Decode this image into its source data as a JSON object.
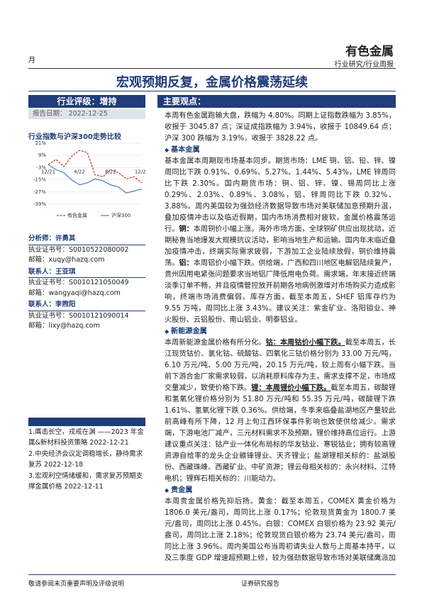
{
  "header": {
    "left": "月",
    "sector": "有色金属",
    "category": "行业研究/行业周报"
  },
  "title": "宏观预期反复，金属价格震荡延续",
  "sidebar": {
    "rating": {
      "label": "行业评级：",
      "value": "增持"
    },
    "date": {
      "label": "报告日期：",
      "value": "2022-12-25"
    },
    "chart_title": "行业指数与沪深300走势比较",
    "chart": {
      "type": "line",
      "categories": [
        "12/21",
        null,
        null,
        null,
        "4/22",
        null,
        null,
        null,
        "8/22",
        null,
        null,
        null,
        "12/22"
      ],
      "series": [
        {
          "name": "有色金属",
          "color": "#c0392b",
          "values": [
            0,
            5,
            -2,
            8,
            14,
            12,
            -10,
            -12,
            -5,
            -8,
            -14,
            -12,
            -18
          ]
        },
        {
          "name": "沪深300",
          "color": "#4a7fc1",
          "values": [
            0,
            -5,
            -8,
            -15,
            -20,
            -18,
            -14,
            -16,
            -20,
            -22,
            -28,
            -26,
            -24
          ]
        }
      ],
      "ylim": [
        -39,
        21
      ],
      "yticks": [
        {
          "value": 21,
          "label": "21%"
        },
        {
          "value": 9,
          "label": "9%"
        },
        {
          "value": -3,
          "label": "-3%"
        },
        {
          "value": -15,
          "label": "-15%"
        },
        {
          "value": -27,
          "label": "-27%"
        },
        {
          "value": -39,
          "label": "-39%"
        }
      ]
    },
    "contacts": [
      {
        "role": "分析师：",
        "name": "许勇其",
        "license": "执业证书号：S0010522080002",
        "email": "邮箱：xuqy@hazq.com"
      },
      {
        "role": "联系人：",
        "name": "王亚琪",
        "license": "执业证书号：S0010121050049",
        "email": "邮箱：wangyaqi@hazq.com"
      },
      {
        "role": "联系人：",
        "name": "李煦阳",
        "license": "执业证书号：S0010121090014",
        "email": "邮箱：lixy@hazq.com"
      }
    ],
    "related": [
      "1.鹰击长空，戎戒在渊 ——2023 年金属&新材料投资策略 2022-12-21",
      "2.中央经济会议定调稳增长，静待需求复苏 2022-12-18",
      "3.宏观利空情绪缓和，需求复苏预期支撑金属价格 2022-12-11"
    ]
  },
  "body": {
    "heading": "主要观点：",
    "blocks": [
      {
        "runs": [
          "本周有色金属跑输大盘，跌幅为 4.80%。同期上证指数跌幅为 3.85%，收报于 3045.87 点；深证成指跌幅为 3.94%，收报于 10849.64 点；沪深 300 跌幅为 3.19%，收报于 3828.22 点。"
        ]
      },
      {
        "heading": "基本金属"
      },
      {
        "runs": [
          "基本金属本周期现市场基本同步。期货市场：LME 铜、铝、铅、锌、镍周同比下跌 0.91%、0.69%、5.27%、1.44%、5.43%，LME 锌周同比下跌 2.30%。国内期货市场：铜、铝、锌、镍、锡周同比上涨 0.29%、2.03%、0.89%、3.08%，铝、锌周同比下跌 0.32%、3.88%。周内美国较为强劲经济数据导致市场对美联储加息预期升温，叠加疫情冲击以及临近假期，国内市场消费相对疲软，金属价格震荡运行。",
          {
            "text": "铜：",
            "style": "bold"
          },
          "本周铜价小幅上涨。海外市场方面，全球铜矿供应出现扰动，近期秘鲁当地爆发大规模抗议活动，影响当地生产和运输。国内年末临近叠加疫情冲击，终端实际需求疲弱，下游加工企业陆续放假，铜价维持震荡。",
          {
            "text": "铝：",
            "style": "bold"
          },
          "本周铝价小幅下跌。供给端，广西和四川地区电解铝陆续复产，贵州因用电紧张问题要求当地铝厂降低用电负荷。需求端，年末接近终端淡季订单不畅，并且疫情管控放开前期各地病例激增对市场购买力造成影响，终端市场消费偏弱。库存方面，截至本周五，SHEF 铝库存约为 9.55 万吨，周同比上涨 3.43%。建议关注：紫金矿业、洛阳钼业、神火股份、云铝股份、南山铝业、明泰铝业。"
        ]
      },
      {
        "heading": "新能源金属"
      },
      {
        "runs": [
          "本周新能源金属价格有所分化。",
          {
            "text": "钴：本周钴价小幅下跌。",
            "style": "bold-underline"
          },
          "截至本周五，长江现货钴价、氯化钴、硫酸钴、四氧化三钴价格分别为 33.00 万元/吨，6.10 万元/吨、5.00 万元/吨，20.15 万元/吨，较上周有小幅下跌。当前下游合金厂家需求较弱，以消耗原料库存为主，需求支撑不足，市场成交量减少，致使价格下跌。",
          {
            "text": "锂：本周锂价小幅下跌。",
            "style": "bold-underline"
          },
          "截至本周五，碳酸锂和氢氧化锂价格分别为 51.80 万元/吨和 55.35 万元/吨，碳酸锂下跌 1.61%、氢氧化锂下跌 0.36%。供给端，冬季来临叠盐湖地区产量较此前高峰有所下降，12 月上旬江西环保事件影响也致使供给减少。需求端，下游电池厂减产，三元材料需求不及预期，锂价维持高位运行。上游建议重点关注：钴产业一体化布局标的华友钴业、寒锐钴业；拥有较高锂资源自给率的龙头企业赣锋锂业、天齐锂业；盐湖锂相关标的：盐湖股份、西藏珠峰、西藏矿业、中矿资源；锂云母相关标的：永兴材料、江特电机；锂辉石相关标的：川能动力。"
        ]
      },
      {
        "heading": "贵金属"
      },
      {
        "runs": [
          "本周贵金属价格先抑后扬。黄金：截至本周五，COMEX 黄金价格为 1806.0 美元/盎司，周同比上涨 0.17%；伦敦现货黄金为 1800.7 美元/盎司，周同比上涨 0.45%。白银：COMEX 白银价格为 23.92 美元/盎司，周同比上涨 2.18%；伦敦现货白银价格为 23.74 美元/盎司，周同比上涨 3.96%。周内美国公布当周初请失业人数与上周基本持平，以及三季度 GDP 增速超预期上修，较为强劲数据导致市场对美联储鹰派加息预期升温，美元和美债收益率走高，金价有所"
        ]
      }
    ]
  },
  "footer": {
    "left": "敬请参阅末页重要声明及评级说明",
    "center": "证券研究报告"
  }
}
